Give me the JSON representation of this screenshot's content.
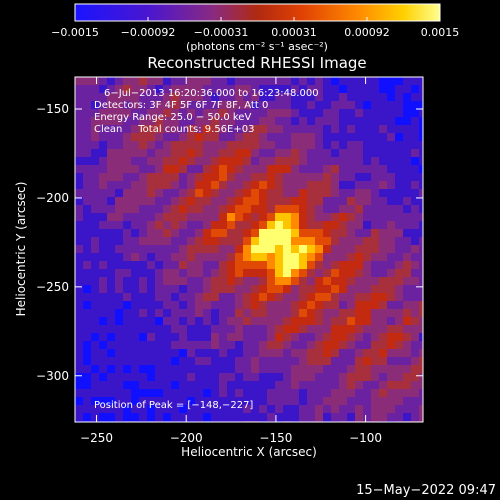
{
  "colors": {
    "background": "#000000",
    "text": "#ffffff",
    "colormap": [
      "#1010ff",
      "#3a16c8",
      "#6a22a0",
      "#8a2c78",
      "#a8303c",
      "#c42a10",
      "#e04a04",
      "#ff8a00",
      "#ffc400",
      "#ffff70"
    ]
  },
  "chart_data": {
    "type": "heatmap",
    "title": "Reconstructed RHESSI Image",
    "xlabel": "Heliocentric X (arcsec)",
    "ylabel": "Heliocentric Y (arcsec)",
    "xlim": [
      -262,
      -68
    ],
    "ylim": [
      -326,
      -132
    ],
    "x_ticks": [
      -250,
      -200,
      -150,
      -100
    ],
    "y_ticks": [
      -150,
      -200,
      -250,
      -300
    ],
    "x_tick_labels": [
      "−250",
      "−200",
      "−150",
      "−100"
    ],
    "y_tick_labels": [
      "−150",
      "−200",
      "−250",
      "−300"
    ],
    "colorbar": {
      "range": [
        -0.0015,
        0.0015
      ],
      "tick_labels": [
        "−0.0015",
        "−0.00092",
        "−0.00031",
        "0.00031",
        "0.00092",
        "0.0015"
      ],
      "units": "(photons cm⁻² s⁻¹ asec⁻²)"
    },
    "annotations": [
      "6−Jul−2013 16:20:36.000 to 16:23:48.000",
      "Detectors: 3F 4F 5F 6F 7F 8F, Att 0",
      "Energy Range: 25.0 − 50.0 keV",
      "Clean     Total counts: 9.56E+03"
    ],
    "peak_label": "Position of Peak = [−148,−227]",
    "peak": {
      "x": -148,
      "y": -227,
      "value": 0.0015
    },
    "timestamp": "15−May−2022 09:47",
    "grid": false
  }
}
